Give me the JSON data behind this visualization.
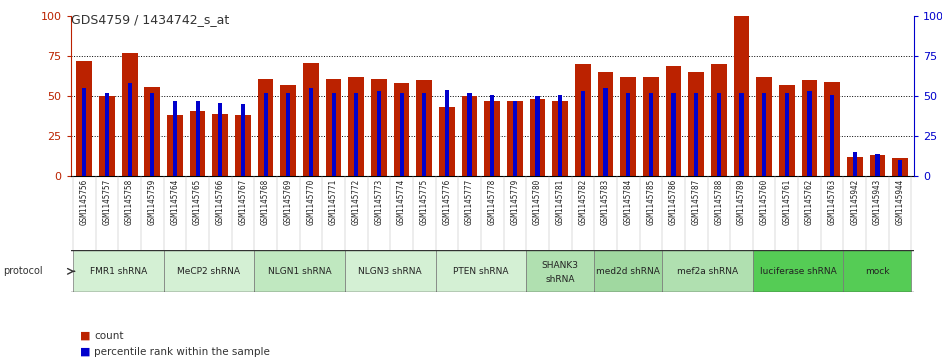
{
  "title": "GDS4759 / 1434742_s_at",
  "samples": [
    "GSM1145756",
    "GSM1145757",
    "GSM1145758",
    "GSM1145759",
    "GSM1145764",
    "GSM1145765",
    "GSM1145766",
    "GSM1145767",
    "GSM1145768",
    "GSM1145769",
    "GSM1145770",
    "GSM1145771",
    "GSM1145772",
    "GSM1145773",
    "GSM1145774",
    "GSM1145775",
    "GSM1145776",
    "GSM1145777",
    "GSM1145778",
    "GSM1145779",
    "GSM1145780",
    "GSM1145781",
    "GSM1145782",
    "GSM1145783",
    "GSM1145784",
    "GSM1145785",
    "GSM1145786",
    "GSM1145787",
    "GSM1145788",
    "GSM1145789",
    "GSM1145760",
    "GSM1145761",
    "GSM1145762",
    "GSM1145763",
    "GSM1145942",
    "GSM1145943",
    "GSM1145944"
  ],
  "counts": [
    72,
    50,
    77,
    56,
    38,
    41,
    39,
    38,
    61,
    57,
    71,
    61,
    62,
    61,
    58,
    60,
    43,
    50,
    47,
    47,
    48,
    47,
    70,
    65,
    62,
    62,
    69,
    65,
    70,
    100,
    62,
    57,
    60,
    59,
    12,
    13,
    11
  ],
  "percentiles": [
    55,
    52,
    58,
    52,
    47,
    47,
    46,
    45,
    52,
    52,
    55,
    52,
    52,
    53,
    52,
    52,
    54,
    52,
    51,
    47,
    50,
    51,
    53,
    55,
    52,
    52,
    52,
    52,
    52,
    52,
    52,
    52,
    53,
    51,
    15,
    14,
    10
  ],
  "protocols": [
    {
      "label": "FMR1 shRNA",
      "start": 0,
      "end": 4,
      "color": "#d4f0d4"
    },
    {
      "label": "MeCP2 shRNA",
      "start": 4,
      "end": 8,
      "color": "#d4f0d4"
    },
    {
      "label": "NLGN1 shRNA",
      "start": 8,
      "end": 12,
      "color": "#c0e8c0"
    },
    {
      "label": "NLGN3 shRNA",
      "start": 12,
      "end": 16,
      "color": "#d4f0d4"
    },
    {
      "label": "PTEN shRNA",
      "start": 16,
      "end": 20,
      "color": "#d4f0d4"
    },
    {
      "label": "SHANK3\nshRNA",
      "start": 20,
      "end": 23,
      "color": "#b0e0b0"
    },
    {
      "label": "med2d shRNA",
      "start": 23,
      "end": 26,
      "color": "#a0d8a0"
    },
    {
      "label": "mef2a shRNA",
      "start": 26,
      "end": 30,
      "color": "#b0e0b0"
    },
    {
      "label": "luciferase shRNA",
      "start": 30,
      "end": 34,
      "color": "#55cc55"
    },
    {
      "label": "mock",
      "start": 34,
      "end": 37,
      "color": "#55cc55"
    }
  ],
  "bar_color": "#bb2200",
  "percentile_color": "#0000cc",
  "bg_color": "#ffffff",
  "tick_bg_color": "#cccccc",
  "ylim": [
    0,
    100
  ],
  "yticks": [
    0,
    25,
    50,
    75,
    100
  ],
  "pct_square_size": 0.18
}
